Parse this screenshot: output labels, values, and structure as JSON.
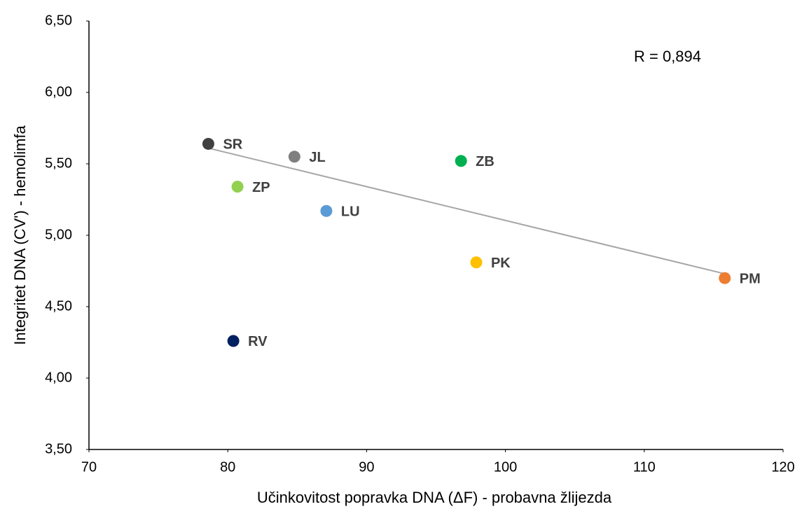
{
  "chart_data": {
    "type": "scatter",
    "xlabel": "Učinkovitost popravka DNA (ΔF) - probavna žlijezda",
    "ylabel": "Integritet DNA (CV') - hemolimfa",
    "annotation": "R = 0,894",
    "xlim": [
      70,
      120
    ],
    "xticks": [
      70,
      80,
      90,
      100,
      110,
      120
    ],
    "ylim": [
      3.5,
      6.5
    ],
    "yticks": [
      {
        "value": 3.5,
        "label": "3,50"
      },
      {
        "value": 4,
        "label": "4,00"
      },
      {
        "value": 4.5,
        "label": "4,50"
      },
      {
        "value": 5,
        "label": "5,00"
      },
      {
        "value": 5.5,
        "label": "5,50"
      },
      {
        "value": 6,
        "label": "6,00"
      },
      {
        "value": 6.5,
        "label": "6,50"
      }
    ],
    "grid": false,
    "series": [
      {
        "name": "SR",
        "color": "#404040",
        "x": [
          78.6
        ],
        "values": [
          5.64
        ]
      },
      {
        "name": "JL",
        "color": "#7f7f7f",
        "x": [
          84.8
        ],
        "values": [
          5.55
        ]
      },
      {
        "name": "ZB",
        "color": "#00b050",
        "x": [
          96.8
        ],
        "values": [
          5.52
        ]
      },
      {
        "name": "ZP",
        "color": "#92d050",
        "x": [
          80.7
        ],
        "values": [
          5.34
        ]
      },
      {
        "name": "LU",
        "color": "#5b9bd5",
        "x": [
          87.1
        ],
        "values": [
          5.17
        ]
      },
      {
        "name": "PK",
        "color": "#ffc000",
        "x": [
          97.9
        ],
        "values": [
          4.81
        ]
      },
      {
        "name": "PM",
        "color": "#ed7d31",
        "x": [
          115.8
        ],
        "values": [
          4.7
        ]
      },
      {
        "name": "RV",
        "color": "#002060",
        "x": [
          80.4
        ],
        "values": [
          4.26
        ]
      }
    ],
    "trendline": {
      "color": "#a6a6a6",
      "x": [
        78.6,
        115.8
      ],
      "values": [
        5.61,
        4.73
      ]
    }
  }
}
